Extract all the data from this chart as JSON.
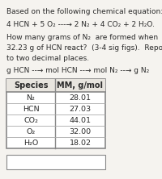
{
  "title_line": "Based on the following chemical equation:",
  "equation": "4 HCN + 5 O₂ ---→ 2 N₂ + 4 CO₂ + 2 H₂O.",
  "question_line1": "How many grams of N₂  are formed when",
  "question_line2": "32.23 g of HCN react?  (3-4 sig figs).  Report",
  "question_line3": "to two decimal places.",
  "pathway": "g HCN --→ mol HCN --→ mol N₂ --→ g N₂",
  "table_header": [
    "Species",
    "MM, g/mol"
  ],
  "table_data": [
    [
      "N₂",
      "28.01"
    ],
    [
      "HCN",
      "27.03"
    ],
    [
      "CO₂",
      "44.01"
    ],
    [
      "O₂",
      "32.00"
    ],
    [
      "H₂O",
      "18.02"
    ]
  ],
  "bg_color": "#f5f3ef",
  "table_bg": "#ffffff",
  "header_bg": "#e8e5df",
  "text_color": "#2a2a2a",
  "border_color": "#888888",
  "row_line_color": "#aaaaaa",
  "font_size": 6.5,
  "table_font_size": 6.8,
  "header_font_size": 7.0,
  "fig_width": 2.0,
  "fig_height": 2.22,
  "dpi": 100
}
